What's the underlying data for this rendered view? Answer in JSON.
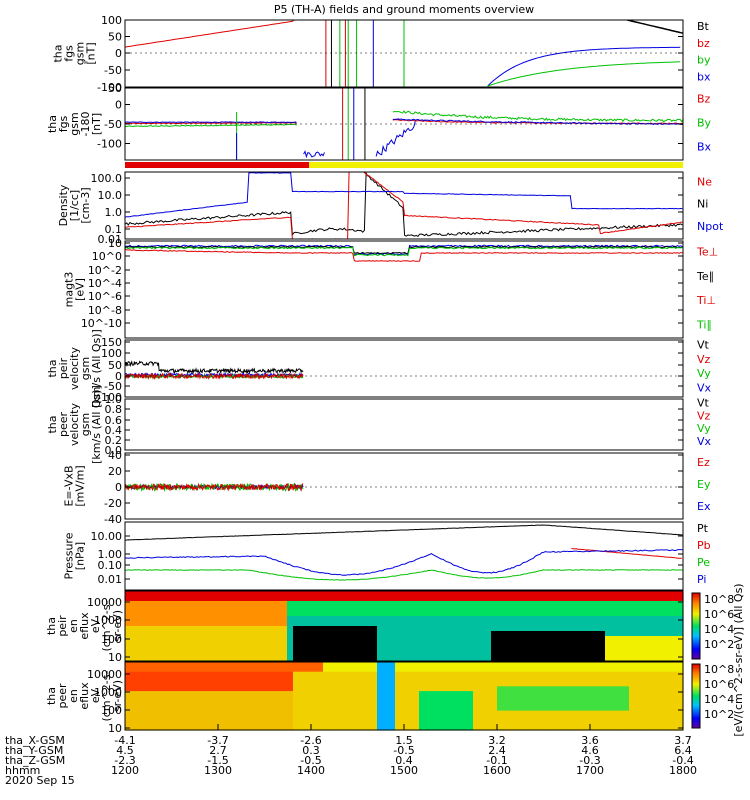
{
  "title": "P5 (TH-A) fields and ground moments overview",
  "colors": {
    "black": "#000000",
    "red": "#e00000",
    "green": "#00c000",
    "blue": "#0000e0",
    "yellow": "#f0f000"
  },
  "chart_data": [
    {
      "type": "line",
      "panel": "fgs",
      "ylabel_lines": [
        "tha",
        "fgs",
        "gsm",
        "[nT]"
      ],
      "ylim": [
        -100,
        100
      ],
      "yticks": [
        "100",
        "50",
        "0",
        "-50",
        "-100"
      ],
      "legend": [
        {
          "name": "Bt",
          "color": "#000000"
        },
        {
          "name": "bz",
          "color": "#e00000"
        },
        {
          "name": "by",
          "color": "#00c000"
        },
        {
          "name": "bx",
          "color": "#0000e0"
        }
      ]
    },
    {
      "type": "line",
      "panel": "fgs-180",
      "ylabel_lines": [
        "tha",
        "fgs",
        "gsm",
        "-180",
        "[nT]"
      ],
      "ylim": [
        -125,
        50
      ],
      "yticks": [
        "50",
        "0",
        "-50",
        "-100"
      ],
      "legend": [
        {
          "name": "Bz",
          "color": "#e00000"
        },
        {
          "name": "By",
          "color": "#00c000"
        },
        {
          "name": "Bx",
          "color": "#0000e0"
        }
      ]
    },
    {
      "type": "line",
      "panel": "density",
      "ylabel_lines": [
        "Density",
        "[1/cc]",
        "[cm-3]"
      ],
      "scale": "log",
      "yticks": [
        "100.0",
        "10.0",
        "1.0",
        "0.1",
        "0.01"
      ],
      "legend": [
        {
          "name": "Ne",
          "color": "#e00000"
        },
        {
          "name": "Ni",
          "color": "#000000"
        },
        {
          "name": "Npot",
          "color": "#0000e0"
        }
      ]
    },
    {
      "type": "line",
      "panel": "temperature",
      "ylabel_lines": [
        "magt3",
        "[eV]"
      ],
      "scale": "log",
      "yticks": [
        "10",
        "10^0",
        "10^-2",
        "10^-4",
        "10^-6",
        "10^-8",
        "10^-10"
      ],
      "legend": [
        {
          "name": "Te⊥",
          "color": "#e00000"
        },
        {
          "name": "Te∥",
          "color": "#000000"
        },
        {
          "name": "Ti⊥",
          "color": "#e00000"
        },
        {
          "name": "Ti∥",
          "color": "#00c000"
        }
      ]
    },
    {
      "type": "line",
      "panel": "peir-velocity",
      "ylabel_lines": [
        "tha",
        "peir",
        "velocity",
        "gsm",
        "[km/s (All Qs)]"
      ],
      "ylim": [
        -100,
        150
      ],
      "yticks": [
        "150",
        "100",
        "50",
        "0",
        "-50",
        "-100"
      ],
      "legend": [
        {
          "name": "Vt",
          "color": "#000000"
        },
        {
          "name": "Vz",
          "color": "#e00000"
        },
        {
          "name": "Vy",
          "color": "#00c000"
        },
        {
          "name": "Vx",
          "color": "#0000e0"
        }
      ]
    },
    {
      "type": "line",
      "panel": "peer-velocity",
      "ylabel_lines": [
        "tha",
        "peer",
        "velocity",
        "gsm",
        "[km/s (All Qs)]"
      ],
      "ylim": [
        0,
        1
      ],
      "yticks": [
        "1.0",
        "0.8",
        "0.6",
        "0.4",
        "0.2",
        "0.0"
      ],
      "legend": [
        {
          "name": "Vt",
          "color": "#000000"
        },
        {
          "name": "Vz",
          "color": "#e00000"
        },
        {
          "name": "Vy",
          "color": "#00c000"
        },
        {
          "name": "Vx",
          "color": "#0000e0"
        }
      ]
    },
    {
      "type": "line",
      "panel": "efield",
      "ylabel_lines": [
        "E=-VxB",
        "[mV/m]"
      ],
      "ylim": [
        -40,
        40
      ],
      "yticks": [
        "40",
        "20",
        "0",
        "-20",
        "-40"
      ],
      "legend": [
        {
          "name": "Ez",
          "color": "#e00000"
        },
        {
          "name": "Ey",
          "color": "#00c000"
        },
        {
          "name": "Ex",
          "color": "#0000e0"
        }
      ]
    },
    {
      "type": "line",
      "panel": "pressure",
      "ylabel_lines": [
        "Pressure",
        "[nPa]"
      ],
      "scale": "log",
      "yticks": [
        "10.00",
        "1.00",
        "0.10",
        "0.01"
      ],
      "legend": [
        {
          "name": "Pt",
          "color": "#000000"
        },
        {
          "name": "Pb",
          "color": "#e00000"
        },
        {
          "name": "Pe",
          "color": "#00c000"
        },
        {
          "name": "Pi",
          "color": "#0000e0"
        }
      ]
    },
    {
      "type": "heatmap",
      "panel": "peir-en-eflux",
      "ylabel_lines": [
        "tha",
        "peir",
        "en",
        "eflux",
        "eV",
        "(cm^2-s-",
        "sr-eV)"
      ],
      "yticks": [
        "10000",
        "1000",
        "100",
        "10"
      ],
      "colorbar_ticks": [
        "10^8",
        "10^6",
        "10^4",
        "10^2"
      ],
      "colorbar_label": "[eV/(cm^2-s-sr-eV)]  (All Qs)"
    },
    {
      "type": "heatmap",
      "panel": "peer-en-eflux",
      "ylabel_lines": [
        "tha",
        "peer",
        "en",
        "eflux",
        "eV",
        "(cm^2-s-",
        "sr-eV)"
      ],
      "yticks": [
        "10000",
        "1000",
        "100",
        "10"
      ],
      "colorbar_ticks": [
        "10^8",
        "10^6",
        "10^4",
        "10^2"
      ],
      "colorbar_label": "[eV/(cm^2-s-sr-eV)]"
    }
  ],
  "xaxis": {
    "rows": [
      {
        "label": "tha_X-GSM",
        "values": [
          "-4.1",
          "-3.7",
          "-2.6",
          "1.5",
          "3.2",
          "3.6",
          "3.7"
        ]
      },
      {
        "label": "tha_Y-GSM",
        "values": [
          "4.5",
          "2.7",
          "0.3",
          "-0.5",
          "2.4",
          "4.6",
          "6.4"
        ]
      },
      {
        "label": "tha_Z-GSM",
        "values": [
          "-2.3",
          "-1.5",
          "-0.5",
          "0.4",
          "-0.1",
          "-0.3",
          "-0.4"
        ]
      },
      {
        "label": "hhmm",
        "values": [
          "1200",
          "1300",
          "1400",
          "1500",
          "1600",
          "1700",
          "1800"
        ]
      }
    ],
    "date": "2020 Sep 15"
  }
}
